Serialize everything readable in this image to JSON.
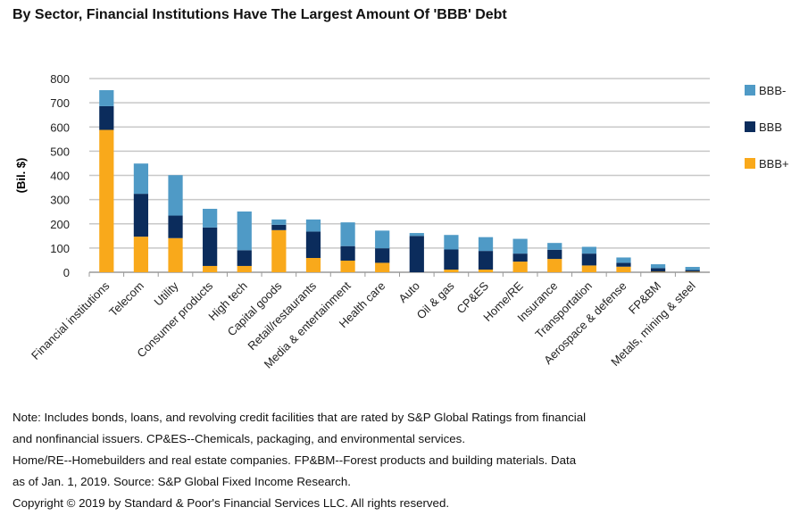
{
  "chart_data": {
    "type": "bar",
    "stacked": true,
    "title": "By Sector, Financial Institutions Have The Largest Amount Of 'BBB' Debt",
    "xlabel": "",
    "ylabel": "(Bil. $)",
    "ylim": [
      0,
      800
    ],
    "yticks": [
      0,
      100,
      200,
      300,
      400,
      500,
      600,
      700,
      800
    ],
    "grid": true,
    "legend_position": "right",
    "categories": [
      "Financial institutions",
      "Telecom",
      "Utility",
      "Consumer products",
      "High tech",
      "Capital goods",
      "Retail/restaurants",
      "Media & entertainment",
      "Health care",
      "Auto",
      "Oil & gas",
      "CP&ES",
      "Home/RE",
      "Insurance",
      "Transportation",
      "Aerospace & defense",
      "FP&BM",
      "Metals, mining & steel"
    ],
    "series": [
      {
        "name": "BBB+",
        "color": "#F9A91B",
        "values": [
          588,
          147,
          141,
          26,
          26,
          174,
          59,
          48,
          39,
          0,
          11,
          11,
          44,
          55,
          28,
          23,
          2,
          2
        ]
      },
      {
        "name": "BBB",
        "color": "#0B2C5C",
        "values": [
          98,
          177,
          93,
          159,
          65,
          22,
          109,
          60,
          60,
          150,
          83,
          77,
          33,
          38,
          49,
          16,
          15,
          7
        ]
      },
      {
        "name": "BBB-",
        "color": "#4F9AC6",
        "values": [
          66,
          125,
          167,
          77,
          160,
          22,
          50,
          98,
          73,
          12,
          60,
          57,
          61,
          28,
          28,
          22,
          16,
          13
        ]
      }
    ],
    "legend_order": [
      "BBB-",
      "BBB",
      "BBB+"
    ]
  },
  "notes": [
    "Note: Includes bonds, loans, and revolving credit facilities that are rated by S&P Global Ratings from financial",
    "and nonfinancial issuers. CP&ES--Chemicals, packaging, and environmental services.",
    "Home/RE--Homebuilders and real estate companies. FP&BM--Forest products and building materials. Data",
    "as of Jan. 1, 2019. Source: S&P Global Fixed Income Research.",
    "Copyright © 2019 by Standard & Poor's Financial Services LLC. All rights reserved."
  ]
}
